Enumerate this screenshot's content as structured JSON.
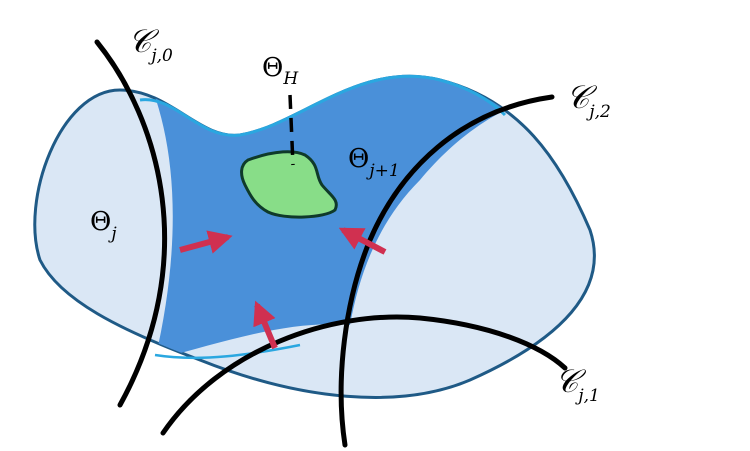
{
  "regions": {
    "theta_j": {
      "main": "Θ",
      "sub": "j"
    },
    "theta_j_plus_1": {
      "main": "Θ",
      "sub": "j+1"
    },
    "theta_h": {
      "main": "Θ",
      "sub": "H"
    }
  },
  "curves": {
    "c_j0": {
      "main": "𝒞",
      "sub": "j,0"
    },
    "c_j1": {
      "main": "𝒞",
      "sub": "j,1"
    },
    "c_j2": {
      "main": "𝒞",
      "sub": "j,2"
    }
  },
  "colors": {
    "outer_region_fill": "#dae7f5",
    "outer_region_stroke": "#1f5a86",
    "inner_region_fill": "#4a90d9",
    "inner_region_stroke": "#2aa7e0",
    "target_region_fill": "#88dd88",
    "target_region_stroke": "#0f3a2a",
    "cut_curve": "#000000",
    "arrow": "#d03050"
  }
}
